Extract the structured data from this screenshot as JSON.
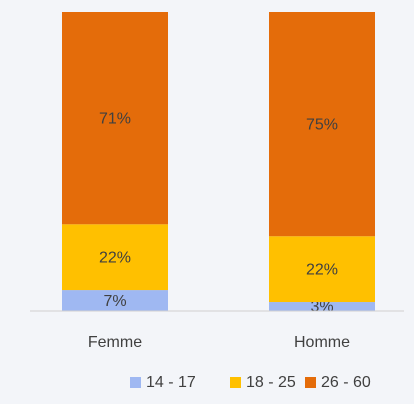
{
  "chart_data": {
    "type": "bar",
    "stacked": true,
    "categories": [
      "Femme",
      "Homme"
    ],
    "series": [
      {
        "name": "14 - 17",
        "color": "#9fb8f2",
        "values": [
          7,
          3
        ],
        "value_labels": [
          "7%",
          "3%"
        ]
      },
      {
        "name": "18 - 25",
        "color": "#ffc000",
        "values": [
          22,
          22
        ],
        "value_labels": [
          "22%",
          "22%"
        ]
      },
      {
        "name": "26 - 60",
        "color": "#e46c0a",
        "values": [
          71,
          75
        ],
        "value_labels": [
          "71%",
          "75%"
        ]
      }
    ],
    "ylim": [
      0,
      100
    ],
    "legend": "bottom"
  }
}
